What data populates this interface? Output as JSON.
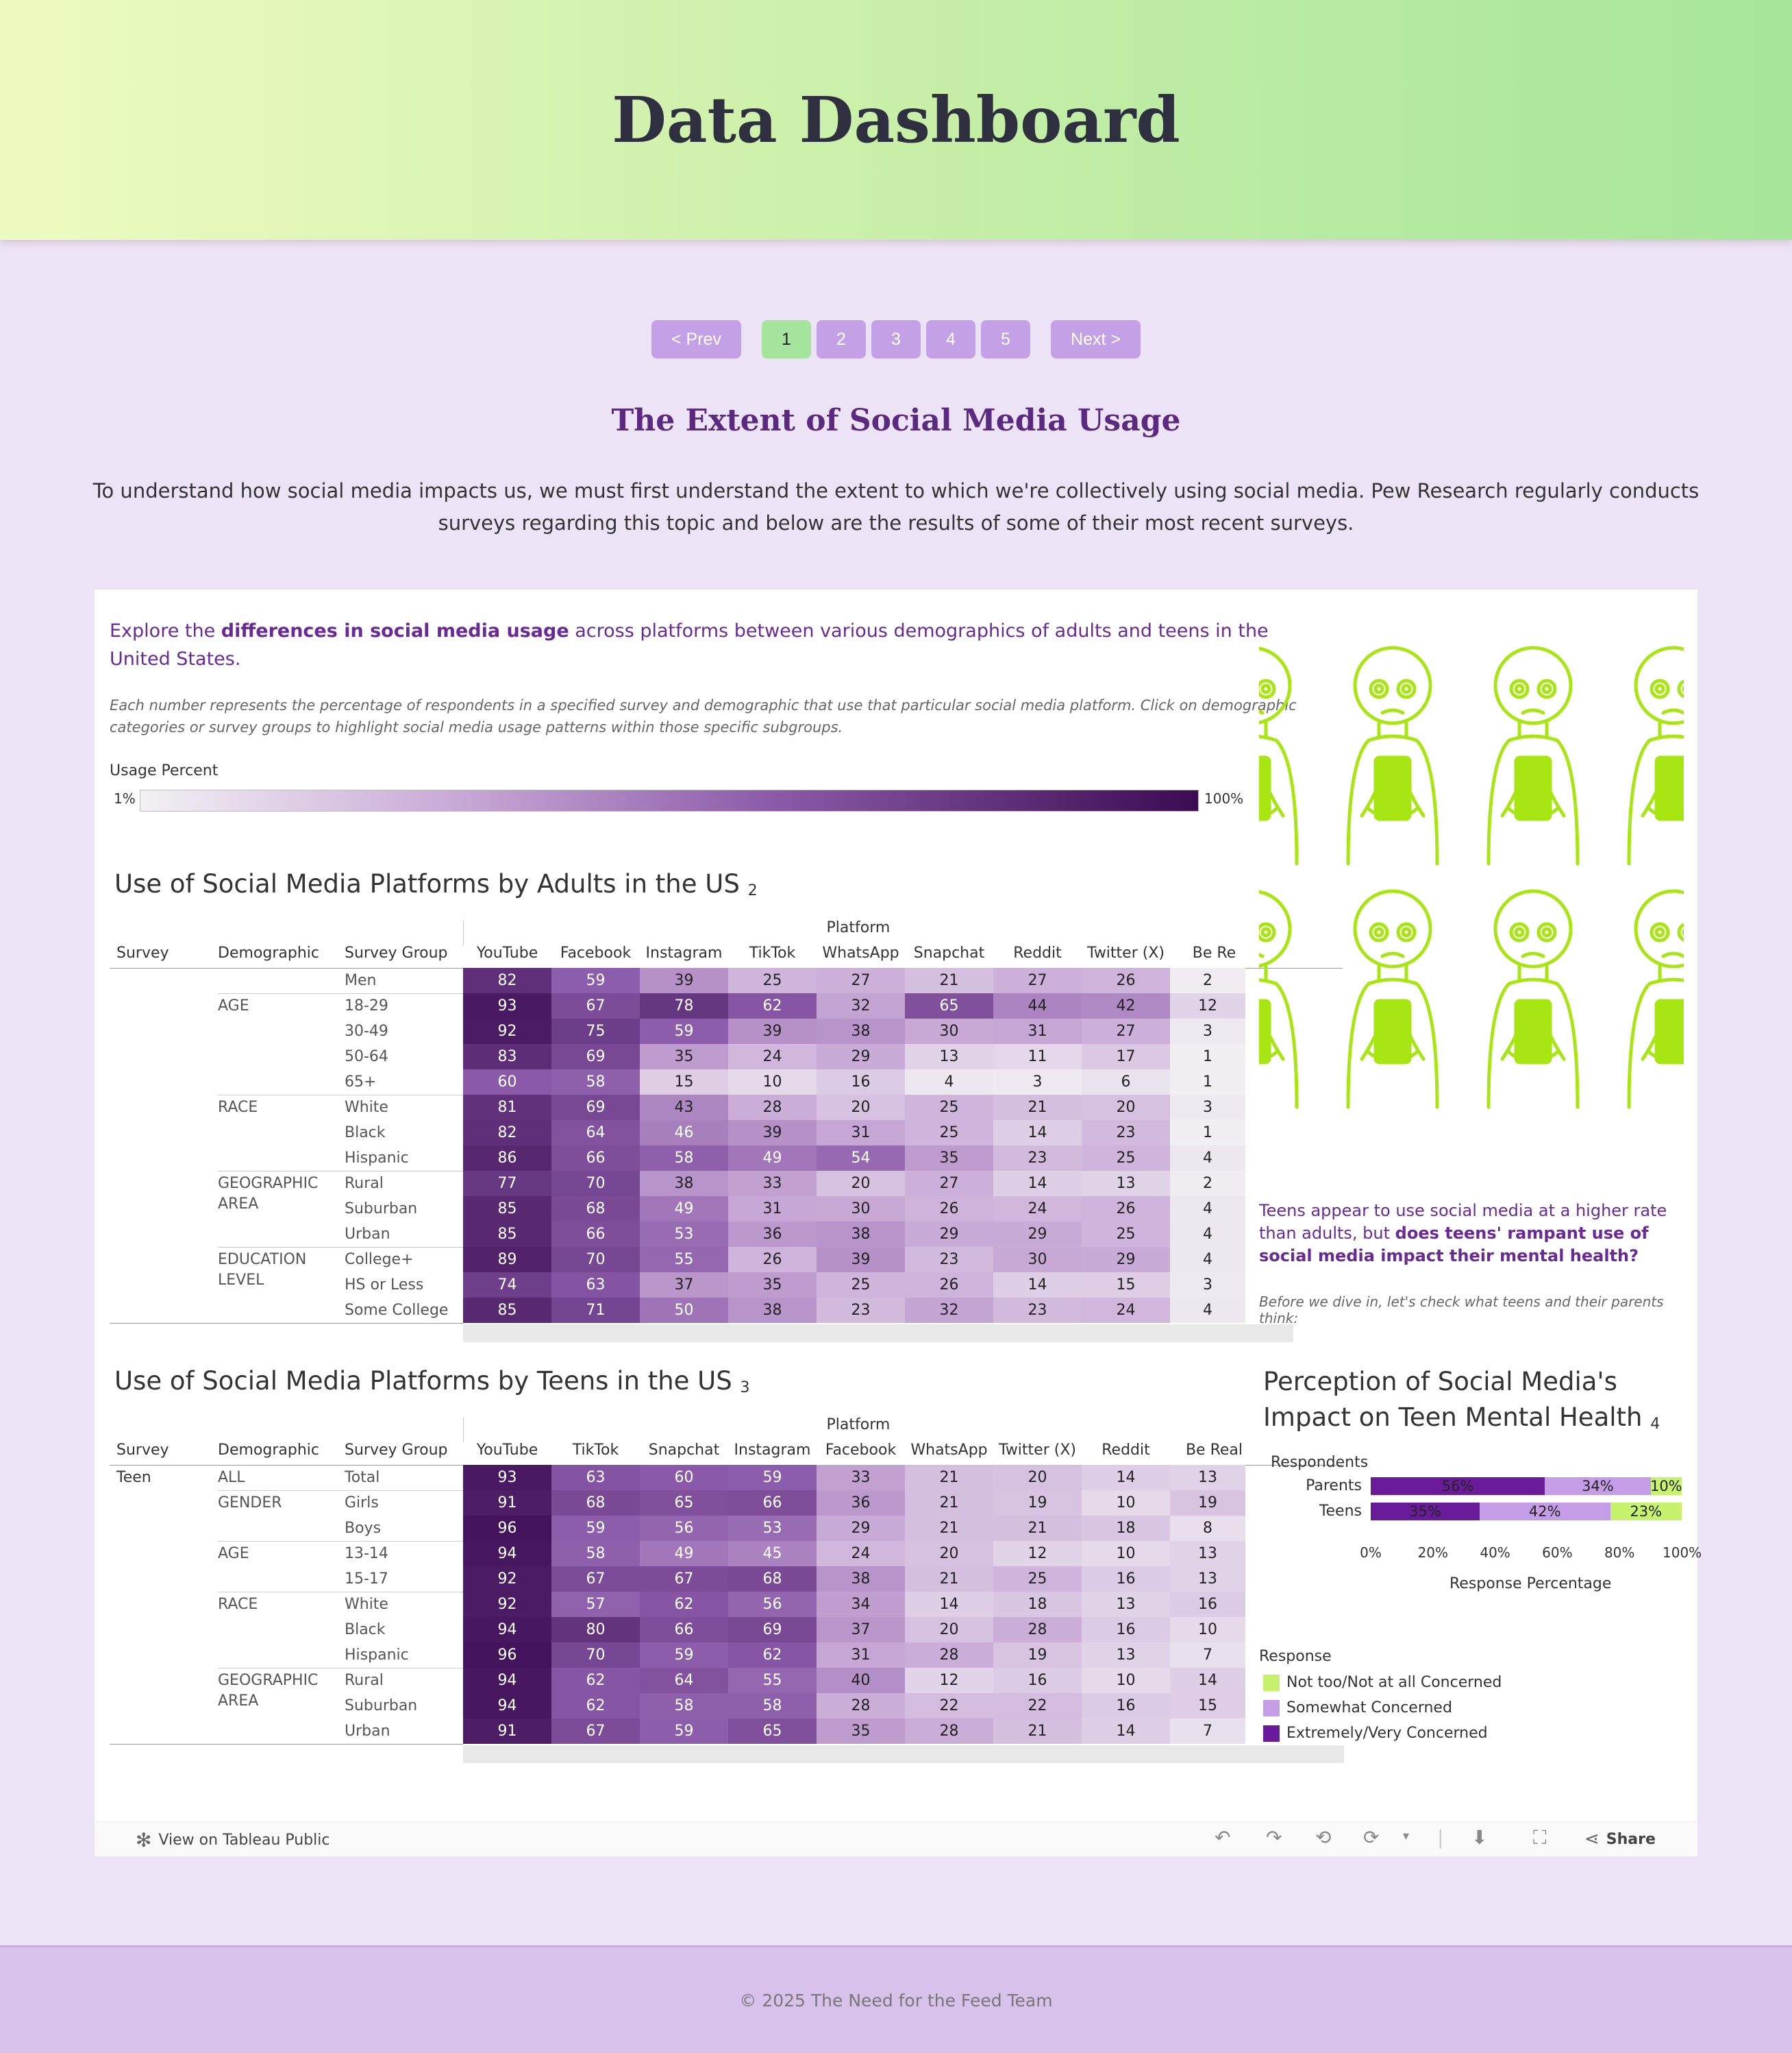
{
  "header": {
    "title": "Data Dashboard"
  },
  "pager": {
    "prev": "< Prev",
    "next": "Next >",
    "pages": [
      "1",
      "2",
      "3",
      "4",
      "5"
    ],
    "active": "1"
  },
  "section": {
    "title": "The Extent of Social Media Usage",
    "intro": "To understand how social media impacts us, we must first understand the extent to which we're collectively using social media. Pew Research regularly conducts surveys regarding this topic and below are the results of some of their most recent surveys."
  },
  "viz": {
    "explore_pre": "Explore the ",
    "explore_bold": "differences in social media usage",
    "explore_post": " across platforms between various demographics of adults and teens in the United States.",
    "note": "Each number represents the percentage of respondents in a specified survey and demographic that use that particular social media platform. Click on demographic categories or survey groups to highlight social media usage patterns within those specific subgroups.",
    "legend": {
      "title": "Usage Percent",
      "min": "1%",
      "max": "100%"
    },
    "headers": {
      "survey": "Survey",
      "demographic": "Demographic",
      "group": "Survey Group",
      "platform": "Platform"
    },
    "adults": {
      "title": "Use of Social Media Platforms by Adults in the US",
      "num": "2",
      "platforms": [
        "YouTube",
        "Facebook",
        "Instagram",
        "TikTok",
        "WhatsApp",
        "Snapchat",
        "Reddit",
        "Twitter (X)",
        "Be Re"
      ],
      "categories": [
        {
          "label": "",
          "rows": [
            [
              "Men",
              [
                82,
                59,
                39,
                25,
                27,
                21,
                27,
                26,
                2
              ]
            ]
          ]
        },
        {
          "label": "AGE",
          "rows": [
            [
              "18-29",
              [
                93,
                67,
                78,
                62,
                32,
                65,
                44,
                42,
                12
              ]
            ],
            [
              "30-49",
              [
                92,
                75,
                59,
                39,
                38,
                30,
                31,
                27,
                3
              ]
            ],
            [
              "50-64",
              [
                83,
                69,
                35,
                24,
                29,
                13,
                11,
                17,
                1
              ]
            ],
            [
              "65+",
              [
                60,
                58,
                15,
                10,
                16,
                4,
                3,
                6,
                1
              ]
            ]
          ]
        },
        {
          "label": "RACE",
          "rows": [
            [
              "White",
              [
                81,
                69,
                43,
                28,
                20,
                25,
                21,
                20,
                3
              ]
            ],
            [
              "Black",
              [
                82,
                64,
                46,
                39,
                31,
                25,
                14,
                23,
                1
              ]
            ],
            [
              "Hispanic",
              [
                86,
                66,
                58,
                49,
                54,
                35,
                23,
                25,
                4
              ]
            ]
          ]
        },
        {
          "label": "GEOGRAPHIC AREA",
          "rows": [
            [
              "Rural",
              [
                77,
                70,
                38,
                33,
                20,
                27,
                14,
                13,
                2
              ]
            ],
            [
              "Suburban",
              [
                85,
                68,
                49,
                31,
                30,
                26,
                24,
                26,
                4
              ]
            ],
            [
              "Urban",
              [
                85,
                66,
                53,
                36,
                38,
                29,
                29,
                25,
                4
              ]
            ]
          ]
        },
        {
          "label": "EDUCATION LEVEL",
          "rows": [
            [
              "College+",
              [
                89,
                70,
                55,
                26,
                39,
                23,
                30,
                29,
                4
              ]
            ],
            [
              "HS or Less",
              [
                74,
                63,
                37,
                35,
                25,
                26,
                14,
                15,
                3
              ]
            ],
            [
              "Some College",
              [
                85,
                71,
                50,
                38,
                23,
                32,
                23,
                24,
                4
              ]
            ]
          ]
        }
      ]
    },
    "teens": {
      "title": "Use of Social Media Platforms by Teens in the US",
      "num": "3",
      "survey_label": "Teen",
      "platforms": [
        "YouTube",
        "TikTok",
        "Snapchat",
        "Instagram",
        "Facebook",
        "WhatsApp",
        "Twitter (X)",
        "Reddit",
        "Be Real"
      ],
      "categories": [
        {
          "label": "ALL",
          "rows": [
            [
              "Total",
              [
                93,
                63,
                60,
                59,
                33,
                21,
                20,
                14,
                13
              ]
            ]
          ]
        },
        {
          "label": "GENDER",
          "rows": [
            [
              "Girls",
              [
                91,
                68,
                65,
                66,
                36,
                21,
                19,
                10,
                19
              ]
            ],
            [
              "Boys",
              [
                96,
                59,
                56,
                53,
                29,
                21,
                21,
                18,
                8
              ]
            ]
          ]
        },
        {
          "label": "AGE",
          "rows": [
            [
              "13-14",
              [
                94,
                58,
                49,
                45,
                24,
                20,
                12,
                10,
                13
              ]
            ],
            [
              "15-17",
              [
                92,
                67,
                67,
                68,
                38,
                21,
                25,
                16,
                13
              ]
            ]
          ]
        },
        {
          "label": "RACE",
          "rows": [
            [
              "White",
              [
                92,
                57,
                62,
                56,
                34,
                14,
                18,
                13,
                16
              ]
            ],
            [
              "Black",
              [
                94,
                80,
                66,
                69,
                37,
                20,
                28,
                16,
                10
              ]
            ],
            [
              "Hispanic",
              [
                96,
                70,
                59,
                62,
                31,
                28,
                19,
                13,
                7
              ]
            ]
          ]
        },
        {
          "label": "GEOGRAPHIC AREA",
          "rows": [
            [
              "Rural",
              [
                94,
                62,
                64,
                55,
                40,
                12,
                16,
                10,
                14
              ]
            ],
            [
              "Suburban",
              [
                94,
                62,
                58,
                58,
                28,
                22,
                22,
                16,
                15
              ]
            ],
            [
              "Urban",
              [
                91,
                67,
                59,
                65,
                35,
                28,
                21,
                14,
                7
              ]
            ]
          ]
        }
      ]
    },
    "side": {
      "text_pre": "Teens appear to use social media at a higher rate than adults, but ",
      "text_bold": "does teens' rampant use of social media impact their mental health?",
      "note": "Before we dive in, let's check what teens and their parents think:"
    },
    "perception": {
      "title": "Perception of Social Media's Impact on Teen Mental Health",
      "num": "4",
      "respondents_label": "Respondents",
      "axis_title": "Response Percentage",
      "ticks": [
        "0%",
        "20%",
        "40%",
        "60%",
        "80%",
        "100%"
      ],
      "rows": [
        {
          "label": "Parents",
          "values": [
            56,
            34,
            10
          ],
          "texts": [
            "56%",
            "34%",
            "10%"
          ]
        },
        {
          "label": "Teens",
          "values": [
            35,
            42,
            23
          ],
          "texts": [
            "35%",
            "42%",
            "23%"
          ]
        }
      ],
      "legend_title": "Response",
      "legend": [
        {
          "label": "Not too/Not at all Concerned",
          "color": "#c6f26e"
        },
        {
          "label": "Somewhat Concerned",
          "color": "#c59de6"
        },
        {
          "label": "Extremely/Very Concerned",
          "color": "#6a1b9a"
        }
      ]
    },
    "toolbar": {
      "view": "View on Tableau Public",
      "share": "Share"
    }
  },
  "footer": {
    "text": "© 2025 The Need for the Feed Team"
  },
  "chart_data": [
    {
      "type": "heatmap",
      "title": "Use of Social Media Platforms by Adults in the US",
      "x": [
        "YouTube",
        "Facebook",
        "Instagram",
        "TikTok",
        "WhatsApp",
        "Snapchat",
        "Reddit",
        "Twitter (X)",
        "Be Re"
      ]
    },
    {
      "type": "heatmap",
      "title": "Use of Social Media Platforms by Teens in the US",
      "x": [
        "YouTube",
        "TikTok",
        "Snapchat",
        "Instagram",
        "Facebook",
        "WhatsApp",
        "Twitter (X)",
        "Reddit",
        "Be Real"
      ]
    },
    {
      "type": "bar",
      "title": "Perception of Social Media's Impact on Teen Mental Health",
      "categories": [
        "Parents",
        "Teens"
      ],
      "series": [
        {
          "name": "Extremely/Very Concerned",
          "values": [
            56,
            35
          ]
        },
        {
          "name": "Somewhat Concerned",
          "values": [
            34,
            42
          ]
        },
        {
          "name": "Not too/Not at all Concerned",
          "values": [
            10,
            23
          ]
        }
      ],
      "xlabel": "Response Percentage",
      "ylabel": "Respondents",
      "xlim": [
        0,
        100
      ]
    }
  ]
}
